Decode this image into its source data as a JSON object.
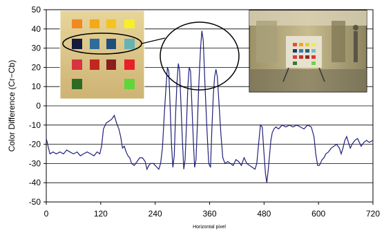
{
  "chart_data": {
    "type": "line",
    "title": "",
    "xlabel": "Horizontal pixel",
    "ylabel": "Color Difference (Cr−Cb)",
    "xlim": [
      0,
      720
    ],
    "ylim": [
      -50,
      50
    ],
    "x_ticks": [
      "0",
      "120",
      "240",
      "360",
      "480",
      "600",
      "720"
    ],
    "y_ticks": [
      "50",
      "40",
      "30",
      "20",
      "10",
      "0",
      "-10",
      "-20",
      "-30",
      "-40",
      "-50"
    ],
    "grid": "horizontal",
    "legend": "none",
    "series": [
      {
        "color": "#1f1f7a",
        "points": [
          [
            0,
            -17
          ],
          [
            4,
            -21
          ],
          [
            8,
            -25
          ],
          [
            15,
            -24
          ],
          [
            22,
            -25
          ],
          [
            30,
            -24
          ],
          [
            38,
            -25
          ],
          [
            45,
            -23
          ],
          [
            52,
            -24
          ],
          [
            60,
            -25
          ],
          [
            68,
            -24
          ],
          [
            75,
            -26
          ],
          [
            82,
            -25
          ],
          [
            90,
            -24
          ],
          [
            98,
            -25
          ],
          [
            105,
            -26
          ],
          [
            112,
            -24
          ],
          [
            118,
            -25
          ],
          [
            122,
            -21
          ],
          [
            126,
            -12
          ],
          [
            132,
            -9
          ],
          [
            138,
            -8
          ],
          [
            144,
            -7
          ],
          [
            150,
            -5
          ],
          [
            155,
            -9
          ],
          [
            160,
            -12
          ],
          [
            164,
            -16
          ],
          [
            168,
            -22
          ],
          [
            172,
            -21
          ],
          [
            176,
            -24
          ],
          [
            180,
            -26
          ],
          [
            184,
            -27
          ],
          [
            188,
            -30
          ],
          [
            194,
            -31
          ],
          [
            200,
            -29
          ],
          [
            206,
            -27
          ],
          [
            212,
            -27
          ],
          [
            218,
            -29
          ],
          [
            222,
            -33
          ],
          [
            226,
            -31
          ],
          [
            230,
            -30
          ],
          [
            236,
            -30
          ],
          [
            240,
            -31
          ],
          [
            244,
            -32
          ],
          [
            248,
            -33
          ],
          [
            252,
            -30
          ],
          [
            256,
            -22
          ],
          [
            260,
            -5
          ],
          [
            264,
            10
          ],
          [
            267,
            20
          ],
          [
            270,
            18
          ],
          [
            273,
            0
          ],
          [
            276,
            -20
          ],
          [
            279,
            -32
          ],
          [
            282,
            -26
          ],
          [
            285,
            -5
          ],
          [
            288,
            12
          ],
          [
            291,
            22
          ],
          [
            294,
            18
          ],
          [
            297,
            0
          ],
          [
            300,
            -18
          ],
          [
            303,
            -33
          ],
          [
            306,
            -28
          ],
          [
            309,
            -10
          ],
          [
            312,
            10
          ],
          [
            315,
            20
          ],
          [
            318,
            18
          ],
          [
            321,
            0
          ],
          [
            324,
            -18
          ],
          [
            327,
            -32
          ],
          [
            330,
            -28
          ],
          [
            333,
            -10
          ],
          [
            336,
            10
          ],
          [
            340,
            30
          ],
          [
            343,
            39
          ],
          [
            346,
            34
          ],
          [
            350,
            10
          ],
          [
            354,
            -12
          ],
          [
            358,
            -30
          ],
          [
            362,
            -32
          ],
          [
            365,
            -12
          ],
          [
            368,
            5
          ],
          [
            371,
            15
          ],
          [
            374,
            19
          ],
          [
            377,
            15
          ],
          [
            381,
            0
          ],
          [
            385,
            -15
          ],
          [
            389,
            -27
          ],
          [
            394,
            -30
          ],
          [
            400,
            -29
          ],
          [
            406,
            -30
          ],
          [
            412,
            -31
          ],
          [
            418,
            -28
          ],
          [
            424,
            -29
          ],
          [
            430,
            -31
          ],
          [
            436,
            -27
          ],
          [
            442,
            -30
          ],
          [
            448,
            -31
          ],
          [
            454,
            -32
          ],
          [
            460,
            -33
          ],
          [
            464,
            -30
          ],
          [
            468,
            -20
          ],
          [
            472,
            -10
          ],
          [
            476,
            -11
          ],
          [
            480,
            -25
          ],
          [
            483,
            -35
          ],
          [
            486,
            -40
          ],
          [
            489,
            -34
          ],
          [
            492,
            -26
          ],
          [
            495,
            -18
          ],
          [
            498,
            -14
          ],
          [
            502,
            -12
          ],
          [
            506,
            -11
          ],
          [
            512,
            -12
          ],
          [
            520,
            -10
          ],
          [
            528,
            -11
          ],
          [
            536,
            -10
          ],
          [
            544,
            -11
          ],
          [
            552,
            -10
          ],
          [
            560,
            -11
          ],
          [
            568,
            -12
          ],
          [
            576,
            -10
          ],
          [
            584,
            -11
          ],
          [
            590,
            -16
          ],
          [
            594,
            -25
          ],
          [
            598,
            -31
          ],
          [
            602,
            -31
          ],
          [
            608,
            -28
          ],
          [
            612,
            -27
          ],
          [
            616,
            -25
          ],
          [
            622,
            -24
          ],
          [
            628,
            -22
          ],
          [
            634,
            -21
          ],
          [
            640,
            -20
          ],
          [
            646,
            -22
          ],
          [
            650,
            -25
          ],
          [
            654,
            -22
          ],
          [
            658,
            -18
          ],
          [
            662,
            -16
          ],
          [
            666,
            -19
          ],
          [
            670,
            -22
          ],
          [
            674,
            -20
          ],
          [
            680,
            -18
          ],
          [
            686,
            -17
          ],
          [
            690,
            -19
          ],
          [
            694,
            -21
          ],
          [
            700,
            -19
          ],
          [
            706,
            -18
          ],
          [
            712,
            -19
          ],
          [
            720,
            -18
          ]
        ]
      }
    ]
  }
}
